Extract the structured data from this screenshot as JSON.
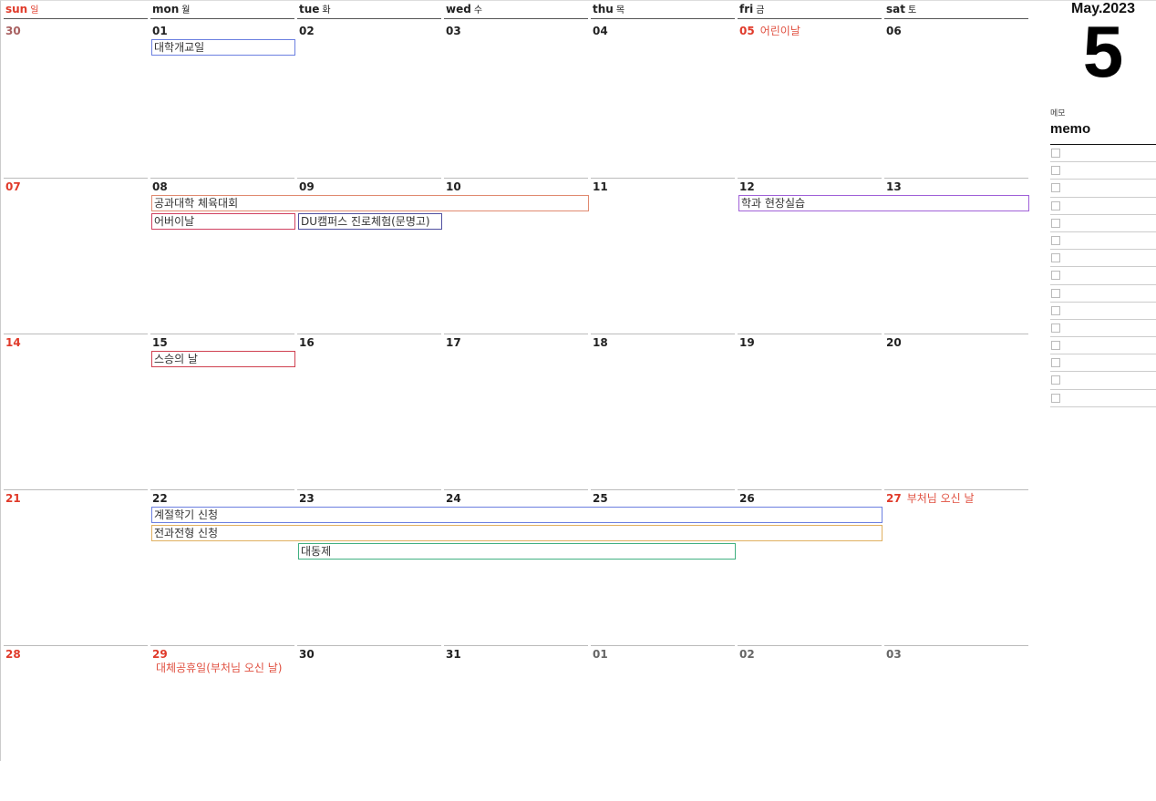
{
  "side": {
    "month_year": "May.2023",
    "month_num": "5",
    "memo_ko": "메모",
    "memo": "memo",
    "memo_rows": 15
  },
  "weekdays": [
    {
      "en": "sun",
      "ko": "일",
      "color": "#e03a2a"
    },
    {
      "en": "mon",
      "ko": "월"
    },
    {
      "en": "tue",
      "ko": "화"
    },
    {
      "en": "wed",
      "ko": "수"
    },
    {
      "en": "thu",
      "ko": "목"
    },
    {
      "en": "fri",
      "ko": "금"
    },
    {
      "en": "sat",
      "ko": "토"
    }
  ],
  "weeks": [
    {
      "days": [
        {
          "d": "30",
          "k": "othersun"
        },
        {
          "d": "01"
        },
        {
          "d": "02"
        },
        {
          "d": "03"
        },
        {
          "d": "04"
        },
        {
          "d": "05",
          "k": "red",
          "holiday": "어린이날"
        },
        {
          "d": "06"
        }
      ],
      "events": [
        {
          "title": "대학개교일",
          "start": 1,
          "span": 1,
          "lane": 0,
          "color": "#6b7fe0"
        }
      ]
    },
    {
      "days": [
        {
          "d": "07",
          "k": "red"
        },
        {
          "d": "08"
        },
        {
          "d": "09"
        },
        {
          "d": "10"
        },
        {
          "d": "11"
        },
        {
          "d": "12"
        },
        {
          "d": "13"
        }
      ],
      "events": [
        {
          "title": "공과대학 체육대회",
          "start": 1,
          "span": 3,
          "lane": 0,
          "color": "#e08a70"
        },
        {
          "title": "학과 현장실습",
          "start": 5,
          "span": 2,
          "lane": 0,
          "color": "#a060d8"
        },
        {
          "title": "어버이날",
          "start": 1,
          "span": 1,
          "lane": 1,
          "color": "#d04060"
        },
        {
          "title": "DU캠퍼스 진로체험(문명고)",
          "start": 2,
          "span": 1,
          "lane": 1,
          "color": "#5050a0"
        }
      ]
    },
    {
      "days": [
        {
          "d": "14",
          "k": "red"
        },
        {
          "d": "15"
        },
        {
          "d": "16"
        },
        {
          "d": "17"
        },
        {
          "d": "18"
        },
        {
          "d": "19"
        },
        {
          "d": "20"
        }
      ],
      "events": [
        {
          "title": "스승의 날",
          "start": 1,
          "span": 1,
          "lane": 0,
          "color": "#d04050"
        }
      ]
    },
    {
      "days": [
        {
          "d": "21",
          "k": "red"
        },
        {
          "d": "22"
        },
        {
          "d": "23"
        },
        {
          "d": "24"
        },
        {
          "d": "25"
        },
        {
          "d": "26"
        },
        {
          "d": "27",
          "k": "red",
          "holiday": "부처님 오신 날"
        }
      ],
      "events": [
        {
          "title": "계절학기 신청",
          "start": 1,
          "span": 5,
          "lane": 0,
          "color": "#6b7fe0"
        },
        {
          "title": "전과전형 신청",
          "start": 1,
          "span": 5,
          "lane": 1,
          "color": "#e0b060"
        },
        {
          "title": "대동제",
          "start": 2,
          "span": 3,
          "lane": 2,
          "color": "#40b080"
        }
      ]
    },
    {
      "days": [
        {
          "d": "28",
          "k": "red"
        },
        {
          "d": "29",
          "k": "red",
          "holiday2": "대체공휴일(부처님 오신 날)"
        },
        {
          "d": "30"
        },
        {
          "d": "31"
        },
        {
          "d": "01",
          "k": "other"
        },
        {
          "d": "02",
          "k": "other"
        },
        {
          "d": "03",
          "k": "other"
        }
      ],
      "events": []
    }
  ]
}
